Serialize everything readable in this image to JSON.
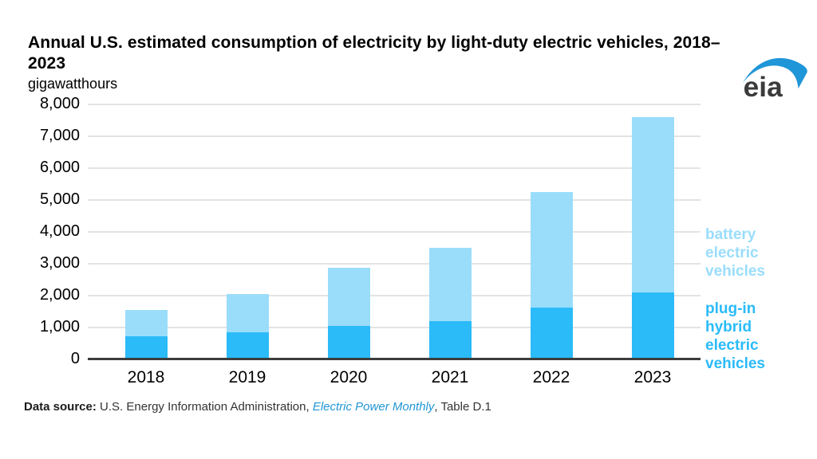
{
  "page": {
    "title": "Annual U.S. estimated consumption of electricity by light-duty electric vehicles, 2018–2023",
    "units_label": "gigawatthours"
  },
  "logo": {
    "text": "eia",
    "swoosh_color": "#1f96d8",
    "text_color": "#3b3b3b"
  },
  "colors": {
    "bev_light_blue": "#9addfb",
    "phev_dark_blue": "#2bbbf8",
    "gridline": "#e3e3e3",
    "axis": "#3c3c3c",
    "link_blue": "#2196d6"
  },
  "chart_data": {
    "type": "bar",
    "stacked": true,
    "title": "Annual U.S. estimated consumption of electricity by light-duty electric vehicles, 2018–2023",
    "ylabel": "gigawatthours",
    "xlabel": "",
    "ylim": [
      0,
      8000
    ],
    "grid": true,
    "legend_position": "right",
    "categories": [
      "2018",
      "2019",
      "2020",
      "2021",
      "2022",
      "2023"
    ],
    "series": [
      {
        "name": "plug-in hybrid electric vehicles",
        "color": "#2bbbf8",
        "values": [
          730,
          850,
          1050,
          1210,
          1620,
          2090
        ]
      },
      {
        "name": "battery electric vehicles",
        "color": "#9addfb",
        "values": [
          830,
          1190,
          1820,
          2290,
          3630,
          5510
        ]
      }
    ],
    "totals": [
      1560,
      2040,
      2870,
      3500,
      5250,
      7600
    ],
    "yticks": [
      {
        "value": 8000,
        "label": "8,000"
      },
      {
        "value": 7000,
        "label": "7,000"
      },
      {
        "value": 6000,
        "label": "6,000"
      },
      {
        "value": 5000,
        "label": "5,000"
      },
      {
        "value": 4000,
        "label": "4,000"
      },
      {
        "value": 3000,
        "label": "3,000"
      },
      {
        "value": 2000,
        "label": "2,000"
      },
      {
        "value": 1000,
        "label": "1,000"
      },
      {
        "value": 0,
        "label": "0"
      }
    ]
  },
  "legend": {
    "bev_label": "battery\nelectric\nvehicles",
    "phev_label": "plug-in\nhybrid\nelectric\nvehicles"
  },
  "footer": {
    "label": "Data source:",
    "text_before_link": " U.S. Energy Information Administration, ",
    "link_text": "Electric Power Monthly",
    "text_after_link": ", Table D.1"
  }
}
